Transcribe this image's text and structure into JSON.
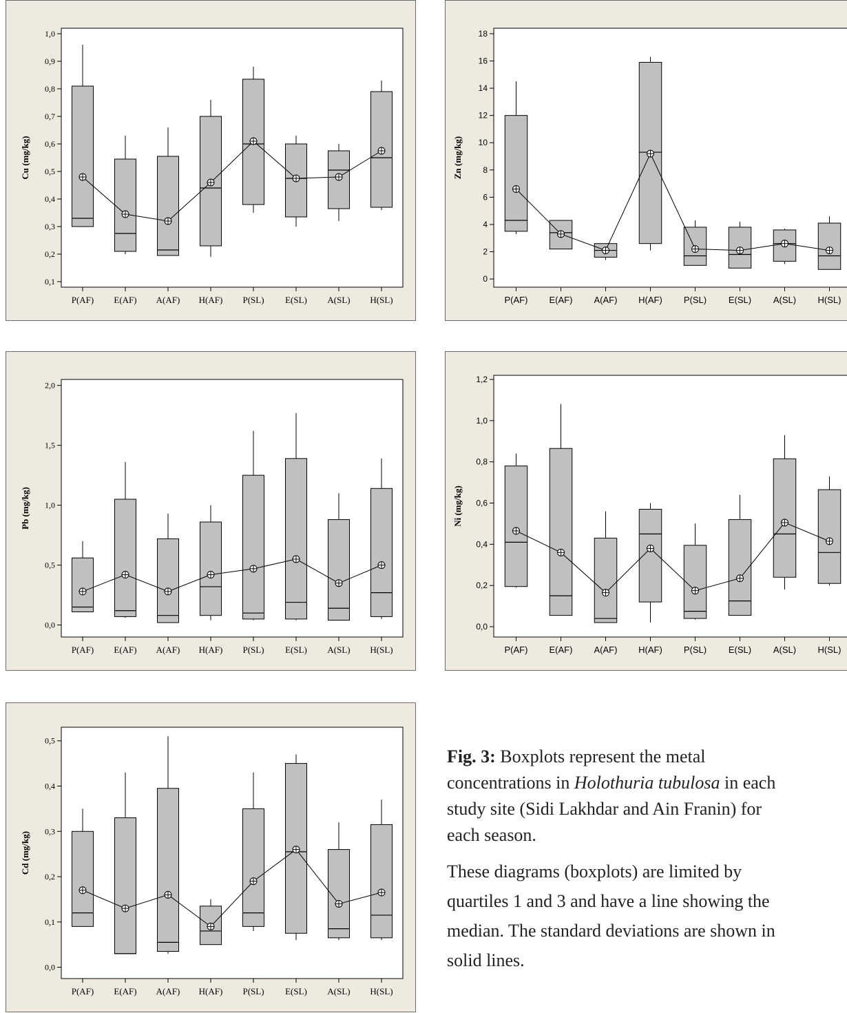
{
  "chart_data": [
    {
      "type": "boxplot",
      "ylabel": "Cu (mg/kg)",
      "categories": [
        "P(AF)",
        "E(AF)",
        "A(AF)",
        "H(AF)",
        "P(SL)",
        "E(SL)",
        "A(SL)",
        "H(SL)"
      ],
      "yticks": [
        "0,1",
        "0,2",
        "0,3",
        "0,4",
        "0,5",
        "0,6",
        "0,7",
        "0,8",
        "0,9",
        "1,0"
      ],
      "ylim": [
        0.08,
        1.02
      ],
      "q1": [
        0.3,
        0.21,
        0.195,
        0.23,
        0.38,
        0.335,
        0.365,
        0.37
      ],
      "median": [
        0.33,
        0.275,
        0.215,
        0.44,
        0.6,
        0.475,
        0.505,
        0.55
      ],
      "q3": [
        0.81,
        0.545,
        0.555,
        0.7,
        0.835,
        0.6,
        0.575,
        0.79
      ],
      "whisker_low": [
        0.3,
        0.2,
        0.195,
        0.19,
        0.35,
        0.3,
        0.32,
        0.36
      ],
      "whisker_high": [
        0.96,
        0.63,
        0.66,
        0.76,
        0.88,
        0.63,
        0.6,
        0.83
      ],
      "mean": [
        0.48,
        0.345,
        0.32,
        0.46,
        0.61,
        0.475,
        0.48,
        0.575
      ]
    },
    {
      "type": "boxplot",
      "ylabel": "Zn (mg/kg)",
      "categories": [
        "P(AF)",
        "E(AF)",
        "A(AF)",
        "H(AF)",
        "P(SL)",
        "E(SL)",
        "A(SL)",
        "H(SL)"
      ],
      "yticks": [
        "0",
        "2",
        "4",
        "6",
        "8",
        "10",
        "12",
        "14",
        "16",
        "18"
      ],
      "ylim": [
        -0.6,
        18.4
      ],
      "q1": [
        3.5,
        2.2,
        1.6,
        2.6,
        1.0,
        0.8,
        1.3,
        0.7
      ],
      "median": [
        4.3,
        3.4,
        2.1,
        9.3,
        1.7,
        1.8,
        2.6,
        1.7
      ],
      "q3": [
        12.0,
        4.3,
        2.6,
        15.9,
        3.8,
        3.8,
        3.6,
        4.1
      ],
      "whisker_low": [
        3.3,
        2.2,
        1.4,
        2.1,
        1.0,
        0.8,
        1.1,
        0.7
      ],
      "whisker_high": [
        14.5,
        4.3,
        2.6,
        16.3,
        4.3,
        4.2,
        3.7,
        4.6
      ],
      "mean": [
        6.6,
        3.3,
        2.1,
        9.2,
        2.2,
        2.1,
        2.6,
        2.1
      ]
    },
    {
      "type": "boxplot",
      "ylabel": "Pb (mg/kg)",
      "categories": [
        "P(AF)",
        "E(AF)",
        "A(AF)",
        "H(AF)",
        "P(SL)",
        "E(SL)",
        "A(SL)",
        "H(SL)"
      ],
      "yticks": [
        "0,0",
        "0,5",
        "1,0",
        "1,5",
        "2,0"
      ],
      "yticks_values": [
        0,
        0.5,
        1.0,
        1.5,
        2.0
      ],
      "ylim": [
        -0.1,
        2.05
      ],
      "q1": [
        0.11,
        0.07,
        0.02,
        0.08,
        0.05,
        0.05,
        0.04,
        0.07
      ],
      "median": [
        0.15,
        0.12,
        0.08,
        0.32,
        0.1,
        0.19,
        0.14,
        0.27
      ],
      "q3": [
        0.56,
        1.05,
        0.72,
        0.86,
        1.25,
        1.39,
        0.88,
        1.14
      ],
      "whisker_low": [
        0.11,
        0.06,
        0.02,
        0.04,
        0.04,
        0.04,
        0.04,
        0.05
      ],
      "whisker_high": [
        0.7,
        1.36,
        0.93,
        1.0,
        1.62,
        1.77,
        1.1,
        1.39
      ],
      "mean": [
        0.28,
        0.42,
        0.28,
        0.42,
        0.47,
        0.55,
        0.35,
        0.5
      ]
    },
    {
      "type": "boxplot",
      "ylabel": "Ni (mg/kg)",
      "categories": [
        "P(AF)",
        "E(AF)",
        "A(AF)",
        "H(AF)",
        "P(SL)",
        "E(SL)",
        "A(SL)",
        "H(SL)"
      ],
      "yticks": [
        "0,0",
        "0,2",
        "0,4",
        "0,6",
        "0,8",
        "1,0",
        "1,2"
      ],
      "yticks_values": [
        0,
        0.2,
        0.4,
        0.6,
        0.8,
        1.0,
        1.2
      ],
      "ylim": [
        -0.05,
        1.22
      ],
      "q1": [
        0.195,
        0.055,
        0.02,
        0.12,
        0.04,
        0.055,
        0.24,
        0.21
      ],
      "median": [
        0.41,
        0.15,
        0.04,
        0.45,
        0.075,
        0.125,
        0.45,
        0.36
      ],
      "q3": [
        0.78,
        0.865,
        0.43,
        0.57,
        0.395,
        0.52,
        0.815,
        0.665
      ],
      "whisker_low": [
        0.19,
        0.055,
        0.02,
        0.02,
        0.035,
        0.055,
        0.18,
        0.2
      ],
      "whisker_high": [
        0.84,
        1.08,
        0.56,
        0.6,
        0.5,
        0.64,
        0.93,
        0.73
      ],
      "mean": [
        0.465,
        0.36,
        0.165,
        0.38,
        0.175,
        0.235,
        0.505,
        0.415
      ]
    },
    {
      "type": "boxplot",
      "ylabel": "Cd (mg/kg)",
      "categories": [
        "P(AF)",
        "E(AF)",
        "A(AF)",
        "H(AF)",
        "P(SL)",
        "E(SL)",
        "A(SL)",
        "H(SL)"
      ],
      "yticks": [
        "0,0",
        "0,1",
        "0,2",
        "0,3",
        "0,4",
        "0,5"
      ],
      "yticks_values": [
        0,
        0.1,
        0.2,
        0.3,
        0.4,
        0.5
      ],
      "ylim": [
        -0.025,
        0.53
      ],
      "q1": [
        0.09,
        0.03,
        0.035,
        0.05,
        0.09,
        0.075,
        0.065,
        0.065
      ],
      "median": [
        0.12,
        0.03,
        0.055,
        0.08,
        0.12,
        0.255,
        0.085,
        0.115
      ],
      "q3": [
        0.3,
        0.33,
        0.395,
        0.135,
        0.35,
        0.45,
        0.26,
        0.315
      ],
      "whisker_low": [
        0.09,
        0.03,
        0.03,
        0.05,
        0.08,
        0.06,
        0.06,
        0.06
      ],
      "whisker_high": [
        0.35,
        0.43,
        0.51,
        0.15,
        0.43,
        0.47,
        0.32,
        0.37
      ],
      "mean": [
        0.17,
        0.13,
        0.16,
        0.09,
        0.19,
        0.26,
        0.14,
        0.165
      ]
    }
  ],
  "caption": {
    "fig_label": "Fig. 3:",
    "line1": " Boxplots represent the metal",
    "line2_a": "concentrations in ",
    "line2_species": "Holothuria tubulosa",
    "line2_b": " in each",
    "line3": "study site (Sidi Lakhdar and Ain Franin) for",
    "line4": "each season.",
    "desc1": "These diagrams (boxplots) are limited by",
    "desc2": "quartiles 1 and 3 and have a line showing the",
    "desc3": "median. The standard deviations are shown in",
    "desc4": "solid lines."
  },
  "colors": {
    "panel_bg": "#efeae0",
    "box_fill": "#c0c0c0",
    "line": "#000000"
  }
}
